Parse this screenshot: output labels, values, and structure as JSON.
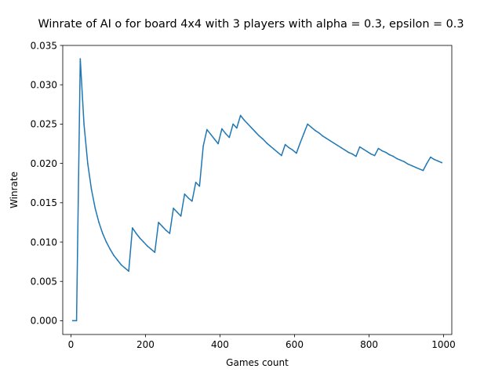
{
  "chart_data": {
    "type": "line",
    "title": "Winrate of AI o for board 4x4 with 3 players with alpha = 0.3, epsilon = 0.3",
    "xlabel": "Games count",
    "ylabel": "Winrate",
    "xlim": [
      -22,
      1022
    ],
    "ylim": [
      -0.00175,
      0.035
    ],
    "xticks": [
      0,
      200,
      400,
      600,
      800,
      1000
    ],
    "xtick_labels": [
      "0",
      "200",
      "400",
      "600",
      "800",
      "1000"
    ],
    "yticks": [
      0.0,
      0.005,
      0.01,
      0.015,
      0.02,
      0.025,
      0.03,
      0.035
    ],
    "ytick_labels": [
      "0.000",
      "0.005",
      "0.010",
      "0.015",
      "0.020",
      "0.025",
      "0.030",
      "0.035"
    ],
    "grid": false,
    "series": [
      {
        "name": "winrate",
        "color": "#1f77b4",
        "x": [
          5,
          15,
          25,
          35,
          45,
          55,
          65,
          75,
          85,
          95,
          105,
          115,
          125,
          135,
          145,
          155,
          165,
          175,
          185,
          195,
          205,
          215,
          225,
          235,
          245,
          255,
          265,
          275,
          285,
          295,
          305,
          315,
          325,
          335,
          345,
          355,
          365,
          375,
          385,
          395,
          405,
          415,
          425,
          435,
          445,
          455,
          465,
          475,
          485,
          495,
          505,
          515,
          525,
          535,
          545,
          555,
          565,
          575,
          585,
          595,
          605,
          615,
          625,
          635,
          645,
          655,
          665,
          675,
          685,
          695,
          705,
          715,
          725,
          735,
          745,
          755,
          765,
          775,
          785,
          795,
          805,
          815,
          825,
          835,
          845,
          855,
          865,
          875,
          885,
          895,
          905,
          915,
          925,
          935,
          945,
          955,
          965,
          975,
          985,
          995
        ],
        "values": [
          0.0,
          0.0,
          0.0333,
          0.025,
          0.02,
          0.0167,
          0.0143,
          0.0125,
          0.0111,
          0.01,
          0.0091,
          0.0083,
          0.0077,
          0.0071,
          0.0067,
          0.0063,
          0.0118,
          0.0111,
          0.0105,
          0.01,
          0.0095,
          0.0091,
          0.0087,
          0.0125,
          0.012,
          0.0115,
          0.0111,
          0.0143,
          0.0138,
          0.0133,
          0.0161,
          0.0156,
          0.0152,
          0.0176,
          0.0171,
          0.0222,
          0.0243,
          0.0237,
          0.0231,
          0.0225,
          0.0244,
          0.0238,
          0.0233,
          0.025,
          0.0245,
          0.0261,
          0.0255,
          0.025,
          0.0245,
          0.024,
          0.0235,
          0.0231,
          0.0226,
          0.0222,
          0.0218,
          0.0214,
          0.021,
          0.0224,
          0.022,
          0.0217,
          0.0213,
          0.0226,
          0.0238,
          0.025,
          0.0246,
          0.0242,
          0.0239,
          0.0235,
          0.0232,
          0.0229,
          0.0226,
          0.0223,
          0.022,
          0.0217,
          0.0214,
          0.0212,
          0.0209,
          0.0221,
          0.0218,
          0.0215,
          0.0212,
          0.021,
          0.0219,
          0.0216,
          0.0214,
          0.0211,
          0.0209,
          0.0206,
          0.0204,
          0.0202,
          0.0199,
          0.0197,
          0.0195,
          0.0193,
          0.0191,
          0.02,
          0.0208,
          0.0205,
          0.0203,
          0.0201
        ]
      }
    ]
  }
}
